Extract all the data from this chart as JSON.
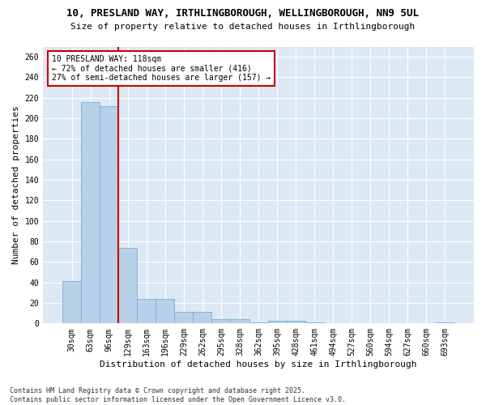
{
  "title_line1": "10, PRESLAND WAY, IRTHLINGBOROUGH, WELLINGBOROUGH, NN9 5UL",
  "title_line2": "Size of property relative to detached houses in Irthlingborough",
  "xlabel": "Distribution of detached houses by size in Irthlingborough",
  "ylabel": "Number of detached properties",
  "categories": [
    "30sqm",
    "63sqm",
    "96sqm",
    "129sqm",
    "163sqm",
    "196sqm",
    "229sqm",
    "262sqm",
    "295sqm",
    "328sqm",
    "362sqm",
    "395sqm",
    "428sqm",
    "461sqm",
    "494sqm",
    "527sqm",
    "560sqm",
    "594sqm",
    "627sqm",
    "660sqm",
    "693sqm"
  ],
  "values": [
    41,
    216,
    212,
    74,
    24,
    24,
    11,
    11,
    4,
    4,
    1,
    3,
    3,
    1,
    0,
    0,
    0,
    0,
    0,
    0,
    1
  ],
  "bar_color": "#b8d0e8",
  "bar_edge_color": "#7bafd4",
  "vline_color": "#cc0000",
  "annotation_line1": "10 PRESLAND WAY: 118sqm",
  "annotation_line2": "← 72% of detached houses are smaller (416)",
  "annotation_line3": "27% of semi-detached houses are larger (157) →",
  "annotation_box_color": "#ffffff",
  "annotation_box_edge_color": "#cc0000",
  "ylim": [
    0,
    270
  ],
  "yticks": [
    0,
    20,
    40,
    60,
    80,
    100,
    120,
    140,
    160,
    180,
    200,
    220,
    240,
    260
  ],
  "background_color": "#dde8f5",
  "grid_color": "#ffffff",
  "footer_line1": "Contains HM Land Registry data © Crown copyright and database right 2025.",
  "footer_line2": "Contains public sector information licensed under the Open Government Licence v3.0.",
  "title_fontsize": 9,
  "subtitle_fontsize": 8,
  "axis_label_fontsize": 8,
  "tick_fontsize": 7,
  "annotation_fontsize": 7,
  "footer_fontsize": 6
}
